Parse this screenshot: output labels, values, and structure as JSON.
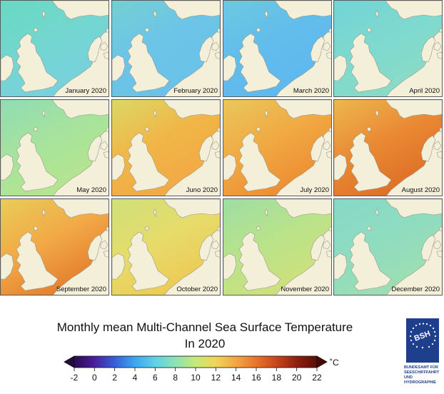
{
  "panels": [
    {
      "label": "January 2020",
      "sea": "#74d6d0",
      "north": "#68d9c2",
      "baltic": "#7fb7e9",
      "south": "#78d0df"
    },
    {
      "label": "February 2020",
      "sea": "#6cc4e8",
      "north": "#73d0d2",
      "baltic": "#7bbcf0",
      "south": "#69c2e8"
    },
    {
      "label": "March 2020",
      "sea": "#62bcec",
      "north": "#6cc9e0",
      "baltic": "#7ab6ee",
      "south": "#5fb8ee"
    },
    {
      "label": "April 2020",
      "sea": "#7ed9cf",
      "north": "#72d4d6",
      "baltic": "#7db7ee",
      "south": "#8bdcc4"
    },
    {
      "label": "May 2020",
      "sea": "#a7e39c",
      "north": "#8fdcb4",
      "baltic": "#a2dfa8",
      "south": "#b7e58c"
    },
    {
      "label": "Juno 2020",
      "sea": "#f1b547",
      "north": "#dcd865",
      "baltic": "#e99a3b",
      "south": "#f2a745"
    },
    {
      "label": "July 2020",
      "sea": "#f1a943",
      "north": "#e8c85a",
      "baltic": "#ea8d34",
      "south": "#ec8a31"
    },
    {
      "label": "August 2020",
      "sea": "#ea8934",
      "north": "#edb84d",
      "baltic": "#c94a1c",
      "south": "#dc6d26"
    },
    {
      "label": "September 2020",
      "sea": "#f2a946",
      "north": "#e9cc5a",
      "baltic": "#ef9a3c",
      "south": "#e27a2c"
    },
    {
      "label": "October 2020",
      "sea": "#e6dc6a",
      "north": "#cfe07a",
      "baltic": "#d8dc70",
      "south": "#efc752"
    },
    {
      "label": "November 2020",
      "sea": "#b9e38a",
      "north": "#9edda4",
      "baltic": "#a8df9c",
      "south": "#d1e07a"
    },
    {
      "label": "December 2020",
      "sea": "#8fdcc0",
      "north": "#86d9c6",
      "baltic": "#7cc7e4",
      "south": "#9fdfb0"
    }
  ],
  "colors": {
    "land": "#f3efd9",
    "coast": "#9a9a8a",
    "panel_border": "#5a5a5a"
  },
  "title_line1": "Monthly mean Multi-Channel Sea Surface Temperature",
  "title_line2": "In 2020",
  "colorbar": {
    "min": -2,
    "max": 22,
    "ticks": [
      "-2",
      "0",
      "2",
      "4",
      "6",
      "8",
      "10",
      "12",
      "14",
      "16",
      "18",
      "20",
      "22"
    ],
    "unit": "˚C",
    "stops": [
      "#2a0a55",
      "#4a1e9a",
      "#3560d8",
      "#3ea6f0",
      "#5fd0e6",
      "#8ce3b4",
      "#c6ea78",
      "#f0d45a",
      "#f3a645",
      "#e6742c",
      "#c8461c",
      "#8e2010",
      "#5a0e06"
    ]
  },
  "logo": {
    "mark": "BSH",
    "text_lines": [
      "BUNDESAMT FÜR",
      "SEESCHIFFFAHRT",
      "UND",
      "HYDROGRAPHIE"
    ]
  }
}
